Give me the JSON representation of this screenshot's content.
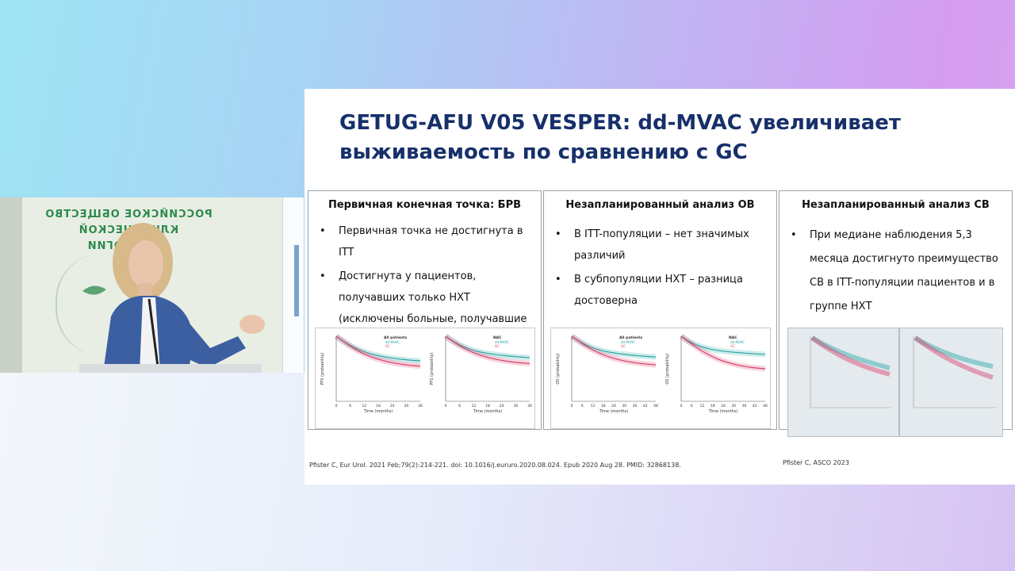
{
  "video": {
    "logo_line1": "РОССИЙСКОЕ ОБЩЕСТВО",
    "logo_line2": "КЛИНИЧЕСКОЙ ОНКОЛОГИИ"
  },
  "slide": {
    "title_line1": "GETUG-AFU V05 VESPER: dd-MVAC увеличивает",
    "title_line2": "выживаемость по сравнению с GC",
    "panels": [
      {
        "heading": "Первичная конечная точка: БРВ",
        "bullets": [
          "Первичная точка не достигнута в ITT",
          "Достигнута у пациентов, получавших только НХТ (исключены больные, получавшие АХТ)"
        ]
      },
      {
        "heading": "Незапланированный анализ ОВ",
        "bullets": [
          "В ITT-популяции – нет значимых различий",
          "В субпопуляции НХТ – разница достоверна"
        ]
      },
      {
        "heading": "Незапланированный анализ СВ",
        "bullets": [
          "При медиане наблюдения 5,3 месяца достигнуто преимущество СВ в ITT-популяции пациентов и в группе НХТ"
        ]
      }
    ],
    "ref1": "Pfister C, Eur Urol. 2021 Feb;79(2):214-221. doi: 10.1016/j.eururo.2020.08.024. Epub 2020 Aug 28. PMID: 32868138.",
    "ref2": "Pfister C, ASCO 2023"
  },
  "charts": [
    {
      "ylabel": "PFS (probability)",
      "xlabel": "Time (months)",
      "group": "All patients",
      "series": [
        "dd-MVAC",
        "GC"
      ],
      "x": [
        "0",
        "6",
        "12",
        "18",
        "24",
        "30",
        "36"
      ],
      "end": [
        0.62,
        0.54
      ]
    },
    {
      "ylabel": "PFS (probability)",
      "xlabel": "Time (months)",
      "group": "NAC",
      "series": [
        "dd-MVAC",
        "GC"
      ],
      "x": [
        "0",
        "6",
        "12",
        "18",
        "24",
        "30",
        "36"
      ],
      "end": [
        0.67,
        0.58
      ]
    },
    {
      "ylabel": "OS (probability)",
      "xlabel": "Time (months)",
      "group": "All patients",
      "series": [
        "dd-MVAC",
        "GC"
      ],
      "x": [
        "0",
        "6",
        "12",
        "18",
        "24",
        "30",
        "36",
        "42",
        "48"
      ],
      "end": [
        0.68,
        0.56
      ]
    },
    {
      "ylabel": "OS (probability)",
      "xlabel": "Time (months)",
      "group": "NAC",
      "series": [
        "dd-MVAC",
        "GC"
      ],
      "x": [
        "0",
        "6",
        "12",
        "18",
        "24",
        "30",
        "36",
        "42",
        "48"
      ],
      "end": [
        0.72,
        0.5
      ]
    }
  ],
  "colors": {
    "title": "#17306b",
    "series_a": "#2aa6a6",
    "series_b": "#d9406a"
  }
}
